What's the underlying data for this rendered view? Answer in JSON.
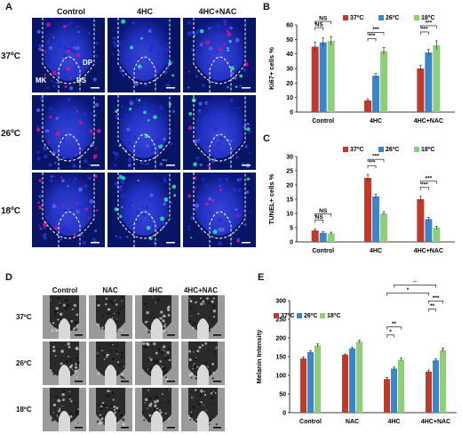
{
  "panels": {
    "A": {
      "letter": "A",
      "columns": [
        "Control",
        "4HC",
        "4HC+NAC"
      ],
      "rows": [
        "37ºC",
        "26ºC",
        "18ºC"
      ],
      "annotations": {
        "dp": "DP",
        "ds": "DS",
        "mk": "MK"
      }
    },
    "B": {
      "letter": "B"
    },
    "C": {
      "letter": "C"
    },
    "D": {
      "letter": "D",
      "columns": [
        "Control",
        "NAC",
        "4HC",
        "4HC+NAC"
      ],
      "rows": [
        "37ºC",
        "26ºC",
        "18ºC"
      ]
    },
    "E": {
      "letter": "E"
    }
  },
  "colors": {
    "red": "#c0392b",
    "blue": "#3a86c8",
    "green": "#8fcf7c",
    "magenta": "#d5148a",
    "cyan": "#2ee8a6",
    "nucleus_blue": "#1c2fd0"
  },
  "chart_data": [
    {
      "id": "B",
      "type": "bar",
      "ylabel": "Ki67+ cells %",
      "ylim": [
        0,
        60
      ],
      "yticks": [
        0,
        10,
        20,
        30,
        40,
        50,
        60
      ],
      "categories": [
        "Control",
        "4HC",
        "4HC+NAC"
      ],
      "series": [
        {
          "name": "37ºC",
          "values": [
            45,
            8,
            30
          ],
          "errors": [
            3,
            1,
            2
          ]
        },
        {
          "name": "26ºC",
          "values": [
            48,
            25,
            41
          ],
          "errors": [
            3,
            1.5,
            2
          ]
        },
        {
          "name": "18ºC",
          "values": [
            49,
            42,
            46
          ],
          "errors": [
            3,
            2.5,
            3
          ]
        }
      ],
      "legend": "top-right",
      "significance": [
        {
          "category": "Control",
          "label": "NS",
          "pair": [
            "37ºC",
            "26ºC"
          ]
        },
        {
          "category": "Control",
          "label": "NS",
          "pair": [
            "37ºC",
            "18ºC"
          ]
        },
        {
          "category": "4HC",
          "label": "***",
          "pair": [
            "37ºC",
            "26ºC"
          ]
        },
        {
          "category": "4HC",
          "label": "***",
          "pair": [
            "37ºC",
            "18ºC"
          ]
        },
        {
          "category": "4HC+NAC",
          "label": "***",
          "pair": [
            "37ºC",
            "26ºC"
          ]
        },
        {
          "category": "4HC+NAC",
          "label": "***",
          "pair": [
            "37ºC",
            "18ºC"
          ]
        }
      ]
    },
    {
      "id": "C",
      "type": "bar",
      "ylabel": "TUNEL+ cells %",
      "ylim": [
        0,
        30
      ],
      "yticks": [
        0,
        5,
        10,
        15,
        20,
        25,
        30
      ],
      "categories": [
        "Control",
        "4HC",
        "4HC+NAC"
      ],
      "series": [
        {
          "name": "37ºC",
          "values": [
            4,
            22.5,
            15
          ],
          "errors": [
            0.5,
            1.2,
            1
          ]
        },
        {
          "name": "26ºC",
          "values": [
            3.2,
            16,
            8
          ],
          "errors": [
            0.4,
            0.8,
            0.6
          ]
        },
        {
          "name": "18ºC",
          "values": [
            3,
            10,
            5
          ],
          "errors": [
            0.4,
            0.6,
            0.5
          ]
        }
      ],
      "legend": "top-right",
      "significance": [
        {
          "category": "Control",
          "label": "NS",
          "pair": [
            "37ºC",
            "26ºC"
          ]
        },
        {
          "category": "Control",
          "label": "NS",
          "pair": [
            "37ºC",
            "18ºC"
          ]
        },
        {
          "category": "4HC",
          "label": "***",
          "pair": [
            "37ºC",
            "26ºC"
          ]
        },
        {
          "category": "4HC",
          "label": "***",
          "pair": [
            "37ºC",
            "18ºC"
          ]
        },
        {
          "category": "4HC+NAC",
          "label": "***",
          "pair": [
            "37ºC",
            "26ºC"
          ]
        },
        {
          "category": "4HC+NAC",
          "label": "***",
          "pair": [
            "37ºC",
            "18ºC"
          ]
        }
      ]
    },
    {
      "id": "E",
      "type": "bar",
      "ylabel": "Melanin Intensity",
      "ylim": [
        0,
        300
      ],
      "yticks": [
        0,
        50,
        100,
        150,
        200,
        250,
        300
      ],
      "categories": [
        "Control",
        "NAC",
        "4HC",
        "4HC+NAC"
      ],
      "series": [
        {
          "name": "37ºC",
          "values": [
            145,
            155,
            90,
            110
          ],
          "errors": [
            4,
            2,
            4,
            4
          ]
        },
        {
          "name": "26ºC",
          "values": [
            162,
            172,
            118,
            140
          ],
          "errors": [
            4,
            3,
            4,
            4
          ]
        },
        {
          "name": "18ºC",
          "values": [
            180,
            190,
            142,
            168
          ],
          "errors": [
            4,
            4,
            4,
            5
          ]
        }
      ],
      "legend": "top-left",
      "significance": [
        {
          "label": "*",
          "from": [
            "4HC",
            "37ºC"
          ],
          "to": [
            "4HC",
            "26ºC"
          ]
        },
        {
          "label": "**",
          "from": [
            "4HC",
            "37ºC"
          ],
          "to": [
            "4HC",
            "18ºC"
          ]
        },
        {
          "label": "**",
          "from": [
            "4HC+NAC",
            "37ºC"
          ],
          "to": [
            "4HC+NAC",
            "26ºC"
          ]
        },
        {
          "label": "***",
          "from": [
            "4HC+NAC",
            "37ºC"
          ],
          "to": [
            "4HC+NAC",
            "18ºC"
          ]
        },
        {
          "label": "*",
          "from": [
            "4HC",
            "37ºC"
          ],
          "to": [
            "4HC+NAC",
            "37ºC"
          ]
        },
        {
          "label": "**",
          "from": [
            "4HC",
            "26ºC"
          ],
          "to": [
            "4HC+NAC",
            "26ºC"
          ]
        },
        {
          "label": "***",
          "from": [
            "4HC",
            "18ºC"
          ],
          "to": [
            "4HC+NAC",
            "18ºC"
          ]
        }
      ]
    }
  ]
}
